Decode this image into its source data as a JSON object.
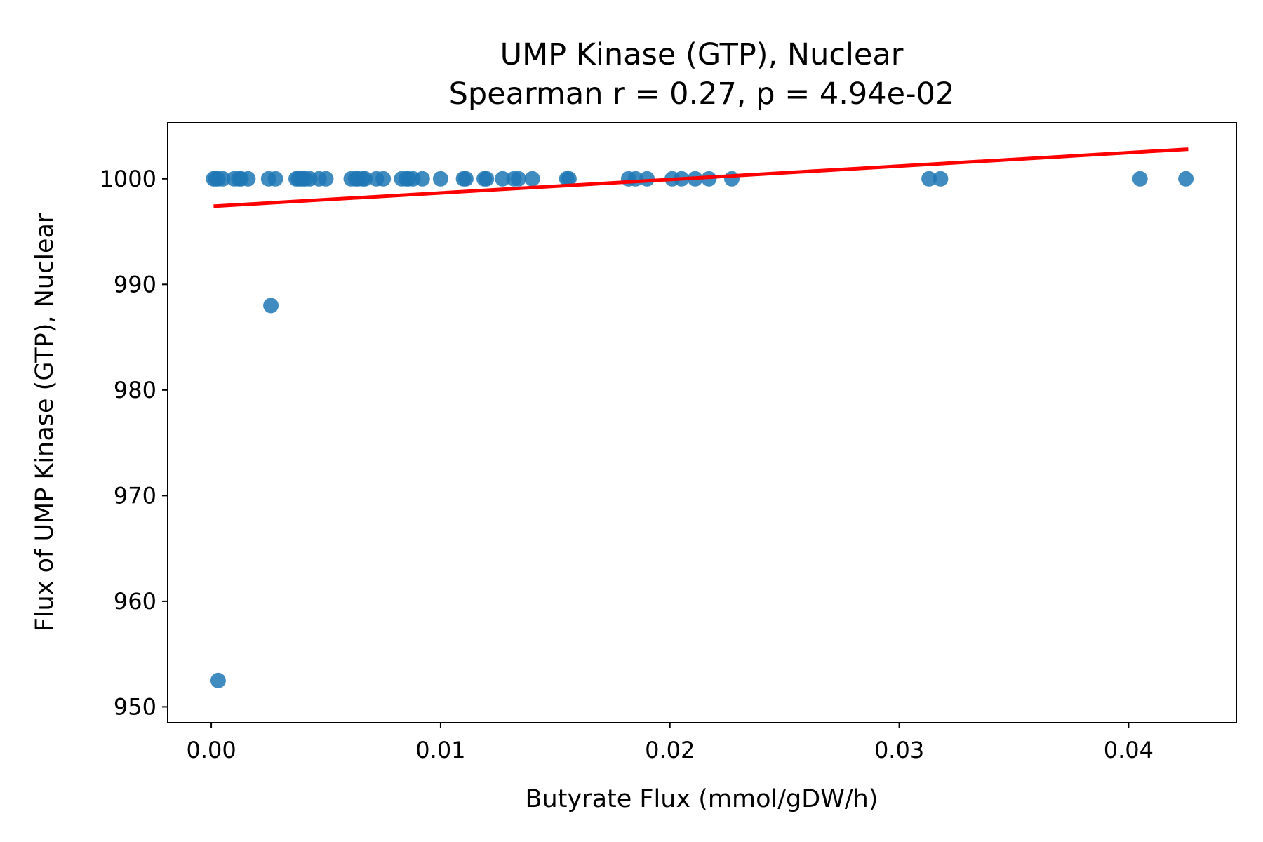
{
  "chart_data": {
    "type": "scatter",
    "title": "UMP Kinase (GTP), Nuclear",
    "subtitle": "Spearman r = 0.27, p = 4.94e-02",
    "xlabel": "Butyrate Flux (mmol/gDW/h)",
    "ylabel": "Flux of UMP Kinase (GTP), Nuclear",
    "xlim": [
      -0.0019,
      0.0447
    ],
    "ylim": [
      948.5,
      1005.3
    ],
    "xticks": [
      0.0,
      0.01,
      0.02,
      0.03,
      0.04
    ],
    "xtick_labels": [
      "0.00",
      "0.01",
      "0.02",
      "0.03",
      "0.04"
    ],
    "yticks": [
      950,
      960,
      970,
      980,
      990,
      1000
    ],
    "ytick_labels": [
      "950",
      "960",
      "970",
      "980",
      "990",
      "1000"
    ],
    "grid": false,
    "colors": {
      "points": "#1f77b4",
      "fit_line": "#ff0000"
    },
    "series": [
      {
        "kind": "points",
        "x": [
          0.0001,
          0.0002,
          0.0003,
          0.0005,
          0.001,
          0.0012,
          0.0013,
          0.0016,
          0.0025,
          0.0028,
          0.0037,
          0.0038,
          0.0039,
          0.004,
          0.0041,
          0.0043,
          0.0047,
          0.005,
          0.0061,
          0.0063,
          0.0064,
          0.0066,
          0.0067,
          0.0072,
          0.0075,
          0.0083,
          0.0085,
          0.0086,
          0.0088,
          0.0092,
          0.01,
          0.011,
          0.0111,
          0.0119,
          0.012,
          0.0127,
          0.0132,
          0.0134,
          0.014,
          0.0155,
          0.0156,
          0.0182,
          0.0185,
          0.019,
          0.0201,
          0.0205,
          0.0211,
          0.0217,
          0.0227,
          0.0313,
          0.0318,
          0.0405,
          0.0425,
          0.0003,
          0.0026
        ],
        "y": [
          1000,
          1000,
          1000,
          1000,
          1000,
          1000,
          1000,
          1000,
          1000,
          1000,
          1000,
          1000,
          1000,
          1000,
          1000,
          1000,
          1000,
          1000,
          1000,
          1000,
          1000,
          1000,
          1000,
          1000,
          1000,
          1000,
          1000,
          1000,
          1000,
          1000,
          1000,
          1000,
          1000,
          1000,
          1000,
          1000,
          1000,
          1000,
          1000,
          1000,
          1000,
          1000,
          1000,
          1000,
          1000,
          1000,
          1000,
          1000,
          1000,
          1000,
          1000,
          1000,
          1000,
          952.5,
          988
        ]
      },
      {
        "kind": "fit_line",
        "x": [
          0.0001,
          0.0426
        ],
        "y": [
          997.4,
          1002.8
        ]
      }
    ]
  }
}
